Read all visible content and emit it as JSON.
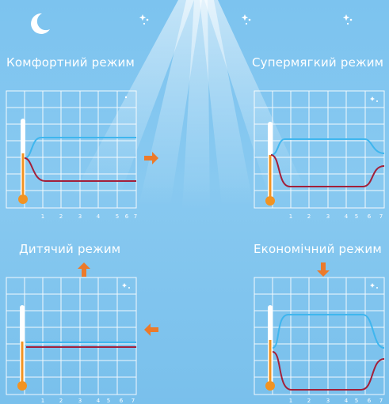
{
  "modes": [
    {
      "title": "Комфортний режим",
      "icon": "moon-icon",
      "ticks": [
        "1",
        "2",
        "3",
        "4",
        "5",
        "6",
        "7"
      ]
    },
    {
      "title": "Супермягкий режим",
      "icon": "moon-stars-icon",
      "ticks": [
        "1",
        "2",
        "3",
        "4",
        "5",
        "6",
        "7"
      ]
    },
    {
      "title": "Дитячий режим",
      "icon": "moon-stars-icon",
      "ticks": [
        "1",
        "2",
        "3",
        "4",
        "5",
        "6",
        "7"
      ]
    },
    {
      "title": "Економічний режим",
      "icon": "moon-stars-icon",
      "ticks": [
        "1",
        "2",
        "3",
        "4",
        "5",
        "6",
        "7"
      ]
    }
  ],
  "top_icons": [
    "moon-icon",
    "moon-stars-icon",
    "moon-stars-icon",
    "moon-stars-icon"
  ],
  "arrows": [
    "arrow-right-icon",
    "arrow-up-icon",
    "arrow-left-icon",
    "arrow-down-icon"
  ],
  "colors": {
    "background": "#7cc3ef",
    "grid": "#ffffff",
    "cool_line": "#3fb6ee",
    "warm_line": "#a3203a",
    "thermometer": "#f29322",
    "arrow": "#ec7a2a"
  }
}
